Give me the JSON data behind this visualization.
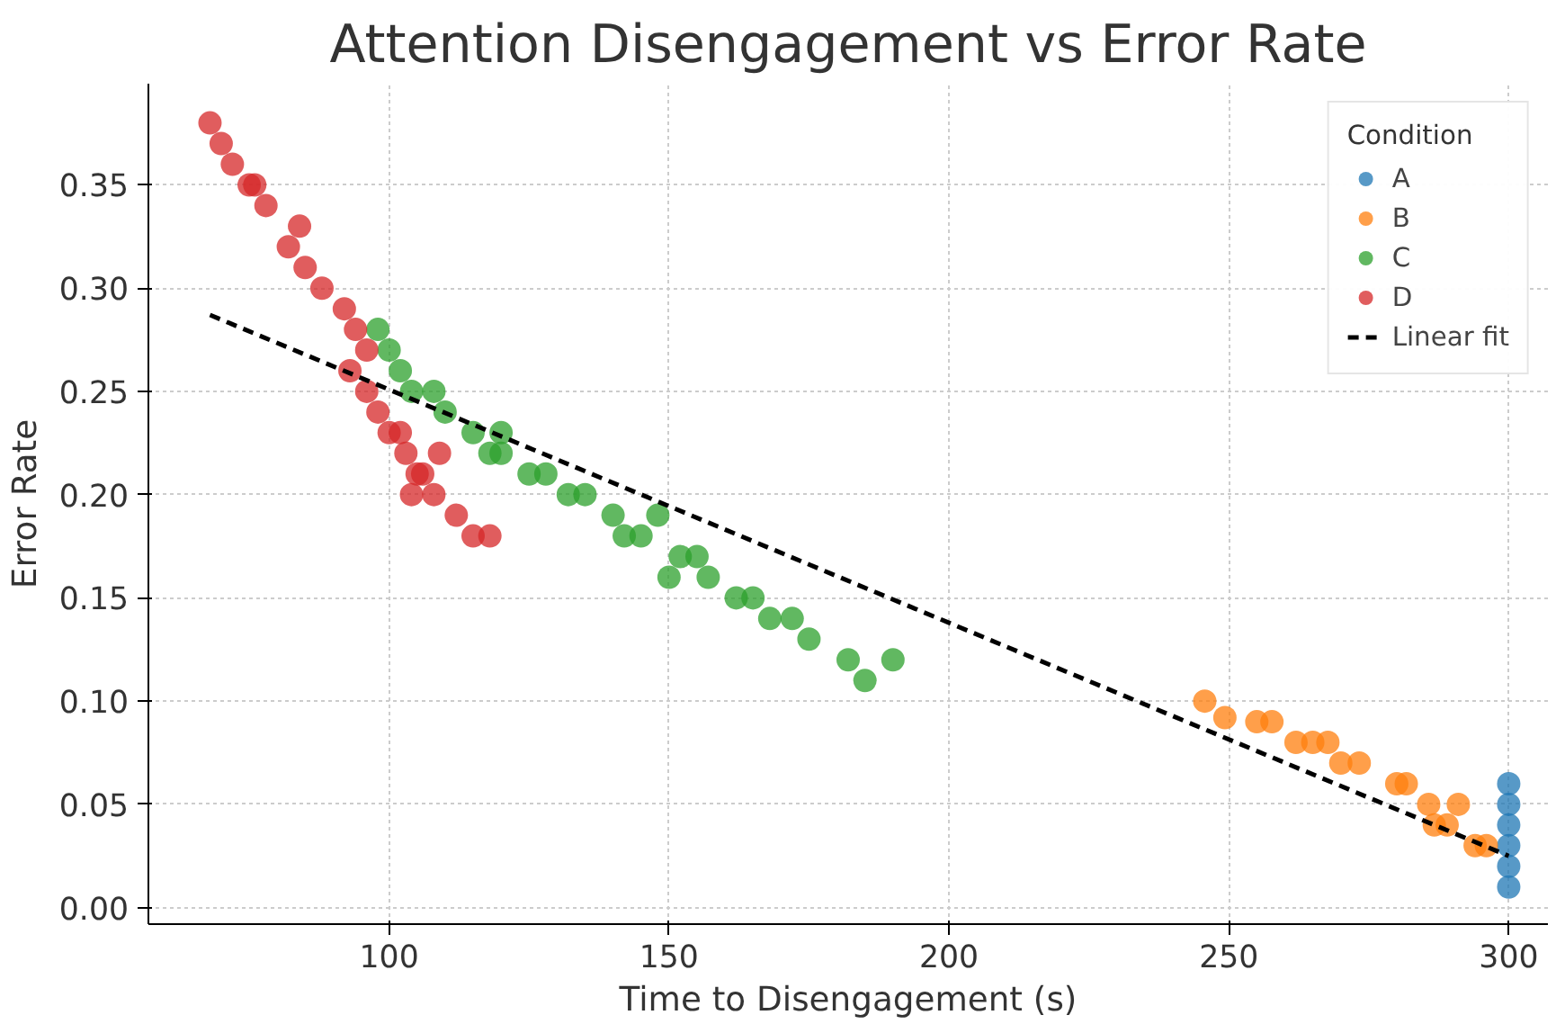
{
  "chart_data": {
    "type": "scatter",
    "title": "Attention Disengagement vs Error Rate",
    "xlabel": "Time to Disengagement (s)",
    "ylabel": "Error Rate",
    "legend_title": "Condition",
    "xlim": [
      57,
      307
    ],
    "ylim": [
      -0.008,
      0.399
    ],
    "xticks": [
      100,
      150,
      200,
      250,
      300
    ],
    "yticks": [
      {
        "value": 0,
        "label": "0.00"
      },
      {
        "value": 0.05,
        "label": "0.05"
      },
      {
        "value": 0.1,
        "label": "0.10"
      },
      {
        "value": 0.15,
        "label": "0.15"
      },
      {
        "value": 0.2,
        "label": "0.20"
      },
      {
        "value": 0.25,
        "label": "0.25"
      },
      {
        "value": 0.3,
        "label": "0.30"
      },
      {
        "value": 0.35,
        "label": "0.35"
      }
    ],
    "grid": true,
    "legend": "top right",
    "marker": "circle",
    "series": [
      {
        "name": "A",
        "color": "#1f77b4",
        "x": [
          300,
          300,
          300,
          300,
          300,
          300
        ],
        "values": [
          0.01,
          0.02,
          0.03,
          0.04,
          0.05,
          0.06
        ]
      },
      {
        "name": "B",
        "color": "#ff7f0e",
        "x": [
          245.7,
          249.3,
          255,
          257.7,
          262,
          265,
          267.7,
          270,
          273.3,
          280,
          281.7,
          285.7,
          291,
          286.7,
          289,
          294,
          296
        ],
        "values": [
          0.1,
          0.092,
          0.09,
          0.09,
          0.08,
          0.08,
          0.08,
          0.07,
          0.07,
          0.06,
          0.06,
          0.05,
          0.05,
          0.04,
          0.04,
          0.03,
          0.03
        ]
      },
      {
        "name": "C",
        "color": "#2ca02c",
        "x": [
          98,
          100,
          102,
          104,
          108,
          110,
          115,
          118,
          120,
          120,
          125,
          128,
          132,
          135,
          140,
          142,
          145,
          148,
          150,
          152,
          155,
          157,
          162,
          165,
          168,
          172,
          175,
          182,
          185,
          190
        ],
        "values": [
          0.28,
          0.27,
          0.26,
          0.25,
          0.25,
          0.24,
          0.23,
          0.22,
          0.23,
          0.22,
          0.21,
          0.21,
          0.2,
          0.2,
          0.19,
          0.18,
          0.18,
          0.19,
          0.16,
          0.17,
          0.17,
          0.16,
          0.15,
          0.15,
          0.14,
          0.14,
          0.13,
          0.12,
          0.11,
          0.12
        ]
      },
      {
        "name": "D",
        "color": "#d62728",
        "x": [
          68,
          70,
          72,
          75,
          76,
          78,
          82,
          84,
          85,
          88,
          92,
          94,
          96,
          93,
          96,
          98,
          100,
          102,
          103,
          105,
          104,
          106,
          108,
          109,
          112,
          115,
          118
        ],
        "values": [
          0.38,
          0.37,
          0.36,
          0.35,
          0.35,
          0.34,
          0.32,
          0.33,
          0.31,
          0.3,
          0.29,
          0.28,
          0.27,
          0.26,
          0.25,
          0.24,
          0.23,
          0.23,
          0.22,
          0.21,
          0.2,
          0.21,
          0.2,
          0.22,
          0.19,
          0.18,
          0.18
        ]
      },
      {
        "name": "Linear fit",
        "type": "line",
        "line_style": "dashed",
        "marker": "none",
        "color": "#000000",
        "x": [
          68,
          300
        ],
        "values": [
          0.287,
          0.025
        ]
      }
    ]
  }
}
